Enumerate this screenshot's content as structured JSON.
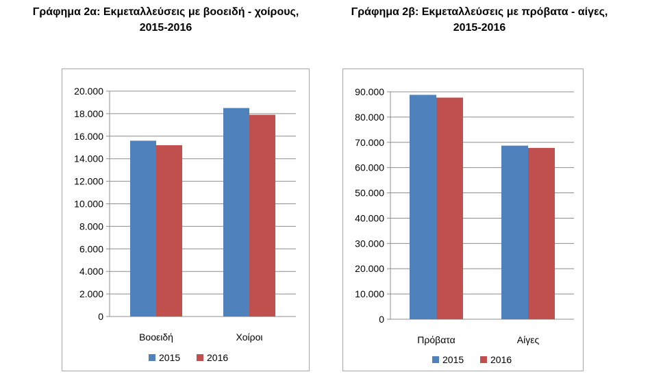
{
  "chart_data": [
    {
      "type": "bar",
      "title": "Γράφημα 2α: Εκμεταλλεύσεις με βοοειδή - χοίρους, 2015-2016",
      "title_lines": [
        "Γράφημα 2α: Εκμεταλλεύσεις με βοοειδή - χοίρους,",
        "2015-2016"
      ],
      "categories": [
        "Βοοειδή",
        "Χοίροι"
      ],
      "series": [
        {
          "name": "2015",
          "color": "#4f81bd",
          "values": [
            15600,
            18500
          ]
        },
        {
          "name": "2016",
          "color": "#c0504d",
          "values": [
            15200,
            17900
          ]
        }
      ],
      "yticks": [
        "0",
        "2.000",
        "4.000",
        "6.000",
        "8.000",
        "10.000",
        "12.000",
        "14.000",
        "16.000",
        "18.000",
        "20.000"
      ],
      "ylim": [
        0,
        20000
      ],
      "grid": true,
      "legend": "bottom",
      "xlabel": "",
      "ylabel": ""
    },
    {
      "type": "bar",
      "title": "Γράφημα 2β: Εκμεταλλεύσεις με πρόβατα - αίγες, 2015-2016",
      "title_lines": [
        "Γράφημα 2β: Εκμεταλλεύσεις με πρόβατα - αίγες,",
        "2015-2016"
      ],
      "categories": [
        "Πρόβατα",
        "Αίγες"
      ],
      "series": [
        {
          "name": "2015",
          "color": "#4f81bd",
          "values": [
            88800,
            68700
          ]
        },
        {
          "name": "2016",
          "color": "#c0504d",
          "values": [
            87700,
            67800
          ]
        }
      ],
      "yticks": [
        "0",
        "10.000",
        "20.000",
        "30.000",
        "40.000",
        "50.000",
        "60.000",
        "70.000",
        "80.000",
        "90.000"
      ],
      "ylim": [
        0,
        90000
      ],
      "grid": true,
      "legend": "bottom",
      "xlabel": "",
      "ylabel": ""
    }
  ]
}
